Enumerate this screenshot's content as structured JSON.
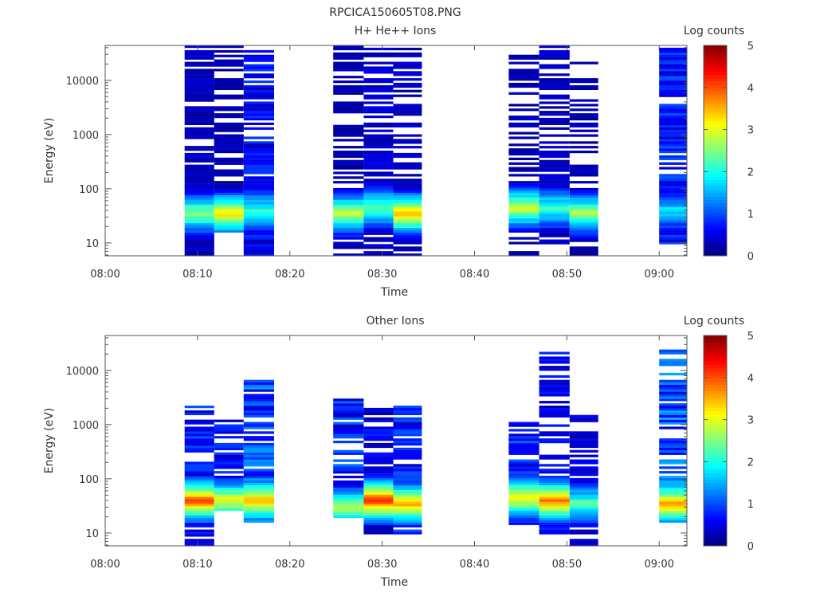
{
  "figure_title": "RPCICA150605T08.PNG",
  "chart_data": [
    {
      "type": "heatmap",
      "title": "H+ He++ Ions",
      "xlabel": "Time",
      "ylabel": "Energy (eV)",
      "colorbar_label": "Log counts",
      "x_ticks": [
        "08:00",
        "08:10",
        "08:20",
        "08:30",
        "08:40",
        "08:50",
        "09:00"
      ],
      "y_ticks": [
        "10",
        "100",
        "1000",
        "10000"
      ],
      "y_scale": "log",
      "ylim": [
        5.8,
        44000
      ],
      "xlim_minutes": [
        0,
        63
      ],
      "colorbar_ticks": [
        "0",
        "1",
        "2",
        "3",
        "4",
        "5"
      ],
      "clim": [
        0,
        5
      ],
      "colormap": "jet",
      "columns": [
        {
          "t0": 8.6,
          "t1": 11.8,
          "seed": 11,
          "hi": 44000,
          "lo": 5.8,
          "fill": 0.82,
          "base": 0.4,
          "peakE": 35,
          "peakV": 2.4
        },
        {
          "t0": 11.8,
          "t1": 15.0,
          "seed": 23,
          "hi": 44000,
          "lo": 15,
          "fill": 0.55,
          "base": 0.3,
          "peakE": 35,
          "peakV": 3.1
        },
        {
          "t0": 15.0,
          "t1": 18.3,
          "seed": 37,
          "hi": 40000,
          "lo": 5.8,
          "fill": 0.78,
          "base": 0.8,
          "peakE": 40,
          "peakV": 1.9
        },
        {
          "t0": 24.7,
          "t1": 28.0,
          "seed": 41,
          "hi": 44000,
          "lo": 5.8,
          "fill": 0.45,
          "base": 0.3,
          "peakE": 35,
          "peakV": 2.7
        },
        {
          "t0": 28.0,
          "t1": 31.2,
          "seed": 53,
          "hi": 40000,
          "lo": 5.8,
          "fill": 0.7,
          "base": 0.5,
          "peakE": 45,
          "peakV": 2.2
        },
        {
          "t0": 31.2,
          "t1": 34.3,
          "seed": 67,
          "hi": 40000,
          "lo": 5.8,
          "fill": 0.55,
          "base": 0.4,
          "peakE": 35,
          "peakV": 3.4
        },
        {
          "t0": 43.7,
          "t1": 47.0,
          "seed": 71,
          "hi": 30000,
          "lo": 5.8,
          "fill": 0.5,
          "base": 0.3,
          "peakE": 45,
          "peakV": 2.8
        },
        {
          "t0": 47.0,
          "t1": 50.3,
          "seed": 83,
          "hi": 44000,
          "lo": 9,
          "fill": 0.72,
          "base": 0.4,
          "peakE": 45,
          "peakV": 2.0
        },
        {
          "t0": 50.3,
          "t1": 53.4,
          "seed": 97,
          "hi": 22000,
          "lo": 5.8,
          "fill": 0.55,
          "base": 0.3,
          "peakE": 35,
          "peakV": 2.6
        },
        {
          "t0": 60.0,
          "t1": 63.0,
          "seed": 101,
          "hi": 40000,
          "lo": 10,
          "fill": 0.8,
          "base": 0.9,
          "peakE": 40,
          "peakV": 1.6
        }
      ]
    },
    {
      "type": "heatmap",
      "title": "Other Ions",
      "xlabel": "Time",
      "ylabel": "Energy (eV)",
      "colorbar_label": "Log counts",
      "x_ticks": [
        "08:00",
        "08:10",
        "08:20",
        "08:30",
        "08:40",
        "08:50",
        "09:00"
      ],
      "y_ticks": [
        "10",
        "100",
        "1000",
        "10000"
      ],
      "y_scale": "log",
      "ylim": [
        5.8,
        44000
      ],
      "xlim_minutes": [
        0,
        63
      ],
      "colorbar_ticks": [
        "0",
        "1",
        "2",
        "3",
        "4",
        "5"
      ],
      "clim": [
        0,
        5
      ],
      "colormap": "jet",
      "columns": [
        {
          "t0": 8.6,
          "t1": 11.8,
          "seed": 13,
          "hi": 2500,
          "lo": 5.8,
          "fill": 0.85,
          "base": 0.9,
          "peakE": 40,
          "peakV": 3.9
        },
        {
          "t0": 11.8,
          "t1": 15.0,
          "seed": 29,
          "hi": 1200,
          "lo": 25,
          "fill": 0.75,
          "base": 0.8,
          "peakE": 40,
          "peakV": 2.9
        },
        {
          "t0": 15.0,
          "t1": 18.3,
          "seed": 31,
          "hi": 7000,
          "lo": 15,
          "fill": 0.8,
          "base": 1.2,
          "peakE": 40,
          "peakV": 3.4
        },
        {
          "t0": 24.7,
          "t1": 28.0,
          "seed": 43,
          "hi": 3500,
          "lo": 20,
          "fill": 0.7,
          "base": 1.0,
          "peakE": 30,
          "peakV": 2.6
        },
        {
          "t0": 28.0,
          "t1": 31.2,
          "seed": 59,
          "hi": 2100,
          "lo": 9.5,
          "fill": 0.75,
          "base": 0.7,
          "peakE": 40,
          "peakV": 4.1
        },
        {
          "t0": 31.2,
          "t1": 34.3,
          "seed": 61,
          "hi": 2300,
          "lo": 9.5,
          "fill": 0.72,
          "base": 0.9,
          "peakE": 35,
          "peakV": 3.4
        },
        {
          "t0": 43.7,
          "t1": 47.0,
          "seed": 73,
          "hi": 1100,
          "lo": 13,
          "fill": 0.78,
          "base": 1.0,
          "peakE": 45,
          "peakV": 3.1
        },
        {
          "t0": 47.0,
          "t1": 50.3,
          "seed": 89,
          "hi": 23000,
          "lo": 9.5,
          "fill": 0.6,
          "base": 0.7,
          "peakE": 40,
          "peakV": 3.7
        },
        {
          "t0": 50.3,
          "t1": 53.4,
          "seed": 91,
          "hi": 1500,
          "lo": 5.8,
          "fill": 0.55,
          "base": 0.6,
          "peakE": 35,
          "peakV": 2.1
        },
        {
          "t0": 60.0,
          "t1": 63.0,
          "seed": 103,
          "hi": 25000,
          "lo": 15,
          "fill": 0.75,
          "base": 1.3,
          "peakE": 35,
          "peakV": 3.4
        }
      ]
    }
  ]
}
